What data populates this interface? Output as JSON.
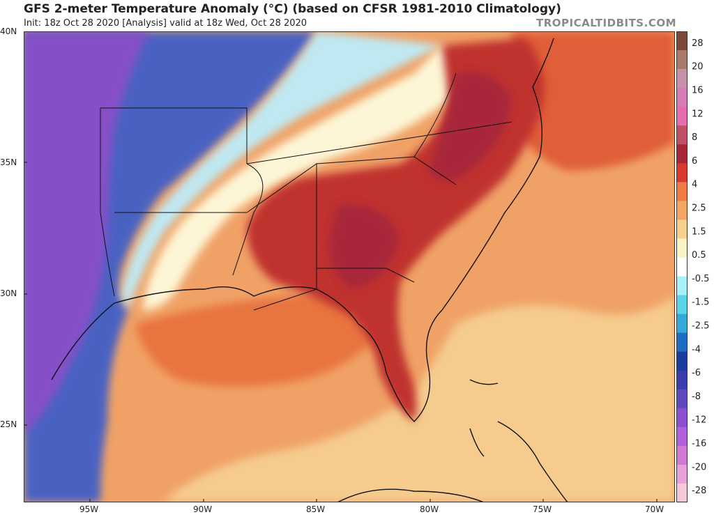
{
  "header": {
    "title": "GFS 2-meter Temperature Anomaly (°C) (based on CFSR 1981-2010 Climatology)",
    "subtitle": "Init: 18z Oct 28 2020   [Analysis]   valid at 18z Wed, Oct 28 2020",
    "brand": "TROPICALTIDBITS.COM"
  },
  "map": {
    "latitude_labels": [
      "40N",
      "35N",
      "30N",
      "25N"
    ],
    "longitude_labels": [
      "95W",
      "90W",
      "85W",
      "80W",
      "75W",
      "70W"
    ],
    "colors": {
      "ocean_warm": "#f0a266",
      "ocean_pale": "#f5cc8e",
      "land_hot": "#c0322e",
      "land_warm": "#e0603c",
      "neutral": "#fdf6d6",
      "cold": "#4a62c2",
      "very_cold": "#8650c8"
    }
  },
  "colorbar": {
    "labels": [
      "28",
      "20",
      "16",
      "12",
      "8",
      "6",
      "4",
      "2.5",
      "1.5",
      "0.5",
      "-0.5",
      "-1.5",
      "-2.5",
      "-4",
      "-6",
      "-8",
      "-12",
      "-16",
      "-20",
      "-28"
    ],
    "colors": [
      "#7d4a3a",
      "#a9796c",
      "#c592a8",
      "#d77bb7",
      "#e76cae",
      "#c05068",
      "#a8263a",
      "#d83a2e",
      "#ef7a44",
      "#f3a664",
      "#f7d08e",
      "#fbf2c6",
      "#ffffff",
      "#a8f0f8",
      "#5cd4e8",
      "#34a8d8",
      "#1e6cc4",
      "#1a3c9c",
      "#3a3cae",
      "#6048c0",
      "#8a50d0",
      "#b060d8",
      "#d078d4",
      "#e8a0dc",
      "#f4c8d8"
    ]
  }
}
